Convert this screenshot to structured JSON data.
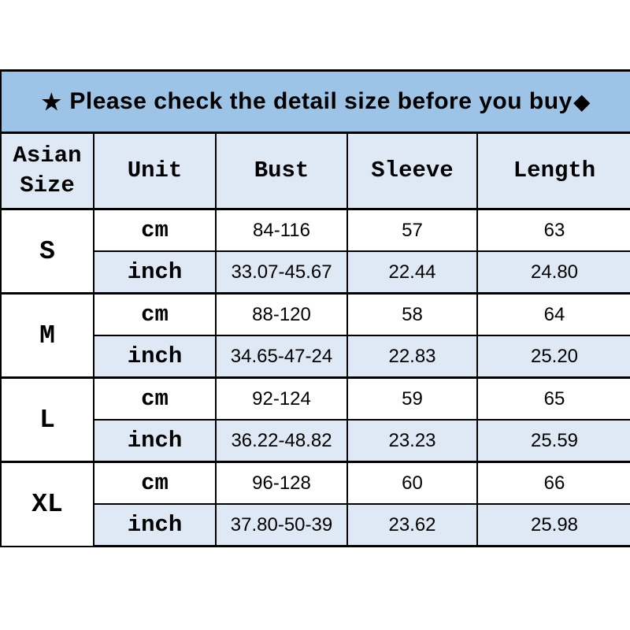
{
  "banner": {
    "star": "★",
    "text": "Please check the detail size before you buy",
    "diamond": "◆"
  },
  "table": {
    "headers": [
      "Asian Size",
      "Unit",
      "Bust",
      "Sleeve",
      "Length"
    ],
    "unit_cm": "cm",
    "unit_inch": "inch",
    "sizes": [
      {
        "size": "S",
        "cm": {
          "bust": "84-116",
          "sleeve": "57",
          "length": "63"
        },
        "inch": {
          "bust": "33.07-45.67",
          "sleeve": "22.44",
          "length": "24.80"
        }
      },
      {
        "size": "M",
        "cm": {
          "bust": "88-120",
          "sleeve": "58",
          "length": "64"
        },
        "inch": {
          "bust": "34.65-47-24",
          "sleeve": "22.83",
          "length": "25.20"
        }
      },
      {
        "size": "L",
        "cm": {
          "bust": "92-124",
          "sleeve": "59",
          "length": "65"
        },
        "inch": {
          "bust": "36.22-48.82",
          "sleeve": "23.23",
          "length": "25.59"
        }
      },
      {
        "size": "XL",
        "cm": {
          "bust": "96-128",
          "sleeve": "60",
          "length": "66"
        },
        "inch": {
          "bust": "37.80-50-39",
          "sleeve": "23.62",
          "length": "25.98"
        }
      }
    ]
  },
  "colors": {
    "banner_bg": "#9DC3E6",
    "light_row_bg": "#DEE9F5",
    "border": "#000000",
    "text": "#000000",
    "page_bg": "#FFFFFF"
  },
  "chart_data": {
    "type": "table",
    "title": "★ Please check the detail size before you buy◆",
    "columns": [
      "Asian Size",
      "Unit",
      "Bust",
      "Sleeve",
      "Length"
    ],
    "rows": [
      [
        "S",
        "cm",
        "84-116",
        "57",
        "63"
      ],
      [
        "S",
        "inch",
        "33.07-45.67",
        "22.44",
        "24.80"
      ],
      [
        "M",
        "cm",
        "88-120",
        "58",
        "64"
      ],
      [
        "M",
        "inch",
        "34.65-47-24",
        "22.83",
        "25.20"
      ],
      [
        "L",
        "cm",
        "92-124",
        "59",
        "65"
      ],
      [
        "L",
        "inch",
        "36.22-48.82",
        "23.23",
        "25.59"
      ],
      [
        "XL",
        "cm",
        "96-128",
        "60",
        "66"
      ],
      [
        "XL",
        "inch",
        "37.80-50-39",
        "23.62",
        "25.98"
      ]
    ],
    "layout": {
      "grid": true,
      "legend": "none",
      "banner_position": "top"
    }
  }
}
